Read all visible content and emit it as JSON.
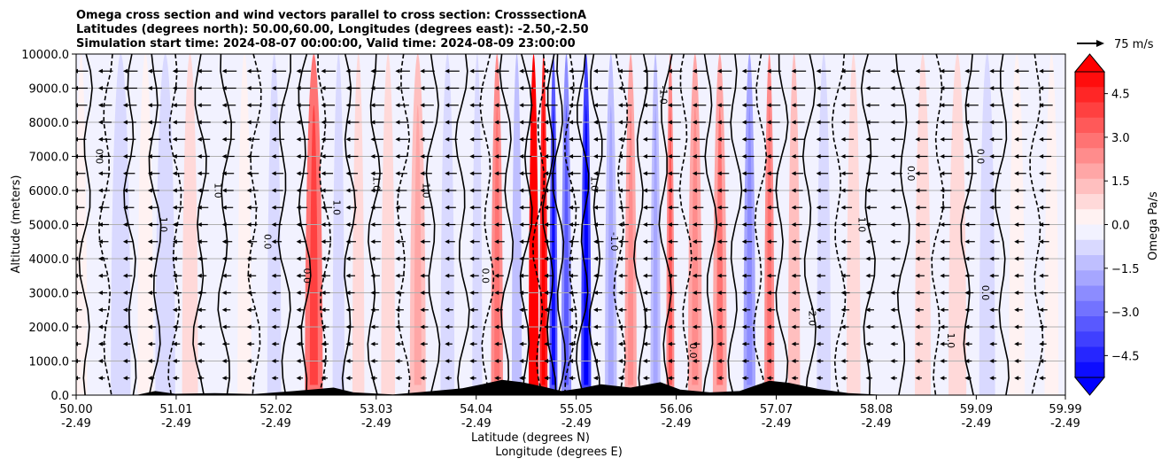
{
  "chart_data": {
    "type": "heatmap",
    "title_lines": [
      "Omega cross section and wind vectors parallel to cross section: CrosssectionA",
      "Latitudes (degrees north): 50.00,60.00, Longitudes (degrees east): -2.50,-2.50",
      "Simulation start time: 2024-08-07 00:00:00, Valid time: 2024-08-09 23:00:00"
    ],
    "ylabel": "Altitude (meters)",
    "xlabel_line1": "Latitude (degrees N)",
    "xlabel_line2": "Longitude (degrees E)",
    "ylim": [
      0,
      10000
    ],
    "xlim": [
      50.0,
      59.99
    ],
    "y_ticks": [
      "0.0",
      "1000.0",
      "2000.0",
      "3000.0",
      "4000.0",
      "5000.0",
      "6000.0",
      "7000.0",
      "8000.0",
      "9000.0",
      "10000.0"
    ],
    "x_ticks": [
      {
        "lat": "50.00",
        "lon": "-2.49"
      },
      {
        "lat": "51.01",
        "lon": "-2.49"
      },
      {
        "lat": "52.02",
        "lon": "-2.49"
      },
      {
        "lat": "53.03",
        "lon": "-2.49"
      },
      {
        "lat": "54.04",
        "lon": "-2.49"
      },
      {
        "lat": "55.05",
        "lon": "-2.49"
      },
      {
        "lat": "56.06",
        "lon": "-2.49"
      },
      {
        "lat": "57.07",
        "lon": "-2.49"
      },
      {
        "lat": "58.08",
        "lon": "-2.49"
      },
      {
        "lat": "59.09",
        "lon": "-2.49"
      },
      {
        "lat": "59.99",
        "lon": "-2.49"
      }
    ],
    "colorbar": {
      "label": "Omega Pa/s",
      "range": [
        -5.25,
        5.25
      ],
      "ticks": [
        "4.5",
        "3.0",
        "1.5",
        "0.0",
        "−1.5",
        "−3.0",
        "−4.5"
      ],
      "colors_top_to_bottom": [
        "#ff0d0d",
        "#ff2626",
        "#ff4040",
        "#ff5959",
        "#ff7373",
        "#ff8c8c",
        "#ffa6a6",
        "#ffbfbf",
        "#ffd9d9",
        "#fff2f2",
        "#f2f2ff",
        "#d9d9ff",
        "#bfbfff",
        "#a6a6ff",
        "#8c8cff",
        "#7373ff",
        "#5959ff",
        "#4040ff",
        "#2626ff",
        "#0d0dff"
      ],
      "extend_top_color": "#ff0000",
      "extend_bottom_color": "#0000ff"
    },
    "quiver_key": "75 m/s",
    "omega_bands": [
      {
        "lat": 50.05,
        "w": 0.06,
        "val": 0.5
      },
      {
        "lat": 50.45,
        "w": 0.1,
        "val": -0.6
      },
      {
        "lat": 50.7,
        "w": 0.08,
        "val": 0.4
      },
      {
        "lat": 50.9,
        "w": 0.1,
        "val": -0.7
      },
      {
        "lat": 51.15,
        "w": 0.08,
        "val": 0.6
      },
      {
        "lat": 51.45,
        "w": 0.08,
        "val": -0.5
      },
      {
        "lat": 51.7,
        "w": 0.07,
        "val": 0.5
      },
      {
        "lat": 52.0,
        "w": 0.07,
        "val": -0.8
      },
      {
        "lat": 52.4,
        "w": 0.09,
        "val": 2.8
      },
      {
        "lat": 52.65,
        "w": 0.06,
        "val": -0.9
      },
      {
        "lat": 52.85,
        "w": 0.06,
        "val": 1.0
      },
      {
        "lat": 53.15,
        "w": 0.07,
        "val": 0.9
      },
      {
        "lat": 53.45,
        "w": 0.08,
        "val": 1.4
      },
      {
        "lat": 53.75,
        "w": 0.07,
        "val": -0.8
      },
      {
        "lat": 54.05,
        "w": 0.05,
        "val": -1.0
      },
      {
        "lat": 54.25,
        "w": 0.06,
        "val": 2.2
      },
      {
        "lat": 54.45,
        "w": 0.05,
        "val": -1.2
      },
      {
        "lat": 54.62,
        "w": 0.05,
        "val": 5.4
      },
      {
        "lat": 54.72,
        "w": 0.04,
        "val": 4.2
      },
      {
        "lat": 54.82,
        "w": 0.04,
        "val": -3.5
      },
      {
        "lat": 54.95,
        "w": 0.05,
        "val": -2.6
      },
      {
        "lat": 55.15,
        "w": 0.05,
        "val": -4.2
      },
      {
        "lat": 55.4,
        "w": 0.06,
        "val": -1.5
      },
      {
        "lat": 55.6,
        "w": 0.06,
        "val": 1.8
      },
      {
        "lat": 55.85,
        "w": 0.05,
        "val": -1.4
      },
      {
        "lat": 56.0,
        "w": 0.04,
        "val": 2.4
      },
      {
        "lat": 56.25,
        "w": 0.07,
        "val": 1.6
      },
      {
        "lat": 56.5,
        "w": 0.07,
        "val": 2.0
      },
      {
        "lat": 56.8,
        "w": 0.06,
        "val": -1.8
      },
      {
        "lat": 57.0,
        "w": 0.05,
        "val": 2.2
      },
      {
        "lat": 57.25,
        "w": 0.06,
        "val": 1.2
      },
      {
        "lat": 57.55,
        "w": 0.07,
        "val": -1.0
      },
      {
        "lat": 57.85,
        "w": 0.07,
        "val": 0.7
      },
      {
        "lat": 58.2,
        "w": 0.08,
        "val": -0.5
      },
      {
        "lat": 58.55,
        "w": 0.08,
        "val": 0.6
      },
      {
        "lat": 58.9,
        "w": 0.09,
        "val": 0.8
      },
      {
        "lat": 59.2,
        "w": 0.08,
        "val": -0.6
      },
      {
        "lat": 59.5,
        "w": 0.08,
        "val": 0.4
      },
      {
        "lat": 59.85,
        "w": 0.07,
        "val": 0.5
      }
    ],
    "contour_lines_lat": [
      50.1,
      50.3,
      50.55,
      50.8,
      51.0,
      51.25,
      51.5,
      51.8,
      52.1,
      52.3,
      52.5,
      52.75,
      53.0,
      53.3,
      53.6,
      53.9,
      54.15,
      54.35,
      54.55,
      54.68,
      54.78,
      54.88,
      55.0,
      55.12,
      55.25,
      55.5,
      55.7,
      55.95,
      56.15,
      56.4,
      56.65,
      56.9,
      57.12,
      57.4,
      57.7,
      58.0,
      58.35,
      58.7,
      59.0,
      59.35,
      59.7
    ],
    "contour_labels": [
      {
        "lat": 50.2,
        "alt": 7000,
        "text": "0.0"
      },
      {
        "lat": 50.85,
        "alt": 5000,
        "text": "1.0"
      },
      {
        "lat": 51.4,
        "alt": 6000,
        "text": "1.0"
      },
      {
        "lat": 51.9,
        "alt": 4500,
        "text": "0.0"
      },
      {
        "lat": 52.3,
        "alt": 3500,
        "text": "0.0"
      },
      {
        "lat": 52.6,
        "alt": 5500,
        "text": "1.0"
      },
      {
        "lat": 53.0,
        "alt": 6200,
        "text": "1.0"
      },
      {
        "lat": 53.5,
        "alt": 6000,
        "text": "1.0"
      },
      {
        "lat": 54.1,
        "alt": 3500,
        "text": "0.0"
      },
      {
        "lat": 55.2,
        "alt": 6200,
        "text": "1.0"
      },
      {
        "lat": 55.4,
        "alt": 4500,
        "text": "-1.0"
      },
      {
        "lat": 55.9,
        "alt": 8800,
        "text": "-1.0"
      },
      {
        "lat": 56.2,
        "alt": 1300,
        "text": "0.0"
      },
      {
        "lat": 57.4,
        "alt": 2300,
        "text": "-2.0"
      },
      {
        "lat": 57.9,
        "alt": 5000,
        "text": "1.0"
      },
      {
        "lat": 58.4,
        "alt": 6500,
        "text": "0.0"
      },
      {
        "lat": 59.1,
        "alt": 7000,
        "text": "0.0"
      },
      {
        "lat": 59.15,
        "alt": 3000,
        "text": "0.0"
      },
      {
        "lat": 58.8,
        "alt": 1600,
        "text": "1.0"
      }
    ],
    "terrain": [
      {
        "lat": 50.0,
        "alt": 0
      },
      {
        "lat": 50.6,
        "alt": 0
      },
      {
        "lat": 50.8,
        "alt": 120
      },
      {
        "lat": 51.0,
        "alt": 40
      },
      {
        "lat": 51.4,
        "alt": 60
      },
      {
        "lat": 51.8,
        "alt": 30
      },
      {
        "lat": 52.2,
        "alt": 120
      },
      {
        "lat": 52.6,
        "alt": 220
      },
      {
        "lat": 52.8,
        "alt": 80
      },
      {
        "lat": 53.2,
        "alt": 20
      },
      {
        "lat": 53.6,
        "alt": 120
      },
      {
        "lat": 53.9,
        "alt": 200
      },
      {
        "lat": 54.1,
        "alt": 320
      },
      {
        "lat": 54.3,
        "alt": 450
      },
      {
        "lat": 54.5,
        "alt": 380
      },
      {
        "lat": 54.7,
        "alt": 260
      },
      {
        "lat": 54.9,
        "alt": 120
      },
      {
        "lat": 55.1,
        "alt": 200
      },
      {
        "lat": 55.3,
        "alt": 320
      },
      {
        "lat": 55.6,
        "alt": 220
      },
      {
        "lat": 55.9,
        "alt": 380
      },
      {
        "lat": 56.1,
        "alt": 160
      },
      {
        "lat": 56.4,
        "alt": 80
      },
      {
        "lat": 56.7,
        "alt": 120
      },
      {
        "lat": 57.0,
        "alt": 420
      },
      {
        "lat": 57.2,
        "alt": 360
      },
      {
        "lat": 57.5,
        "alt": 180
      },
      {
        "lat": 57.8,
        "alt": 60
      },
      {
        "lat": 58.2,
        "alt": 0
      },
      {
        "lat": 59.99,
        "alt": 0
      }
    ]
  }
}
